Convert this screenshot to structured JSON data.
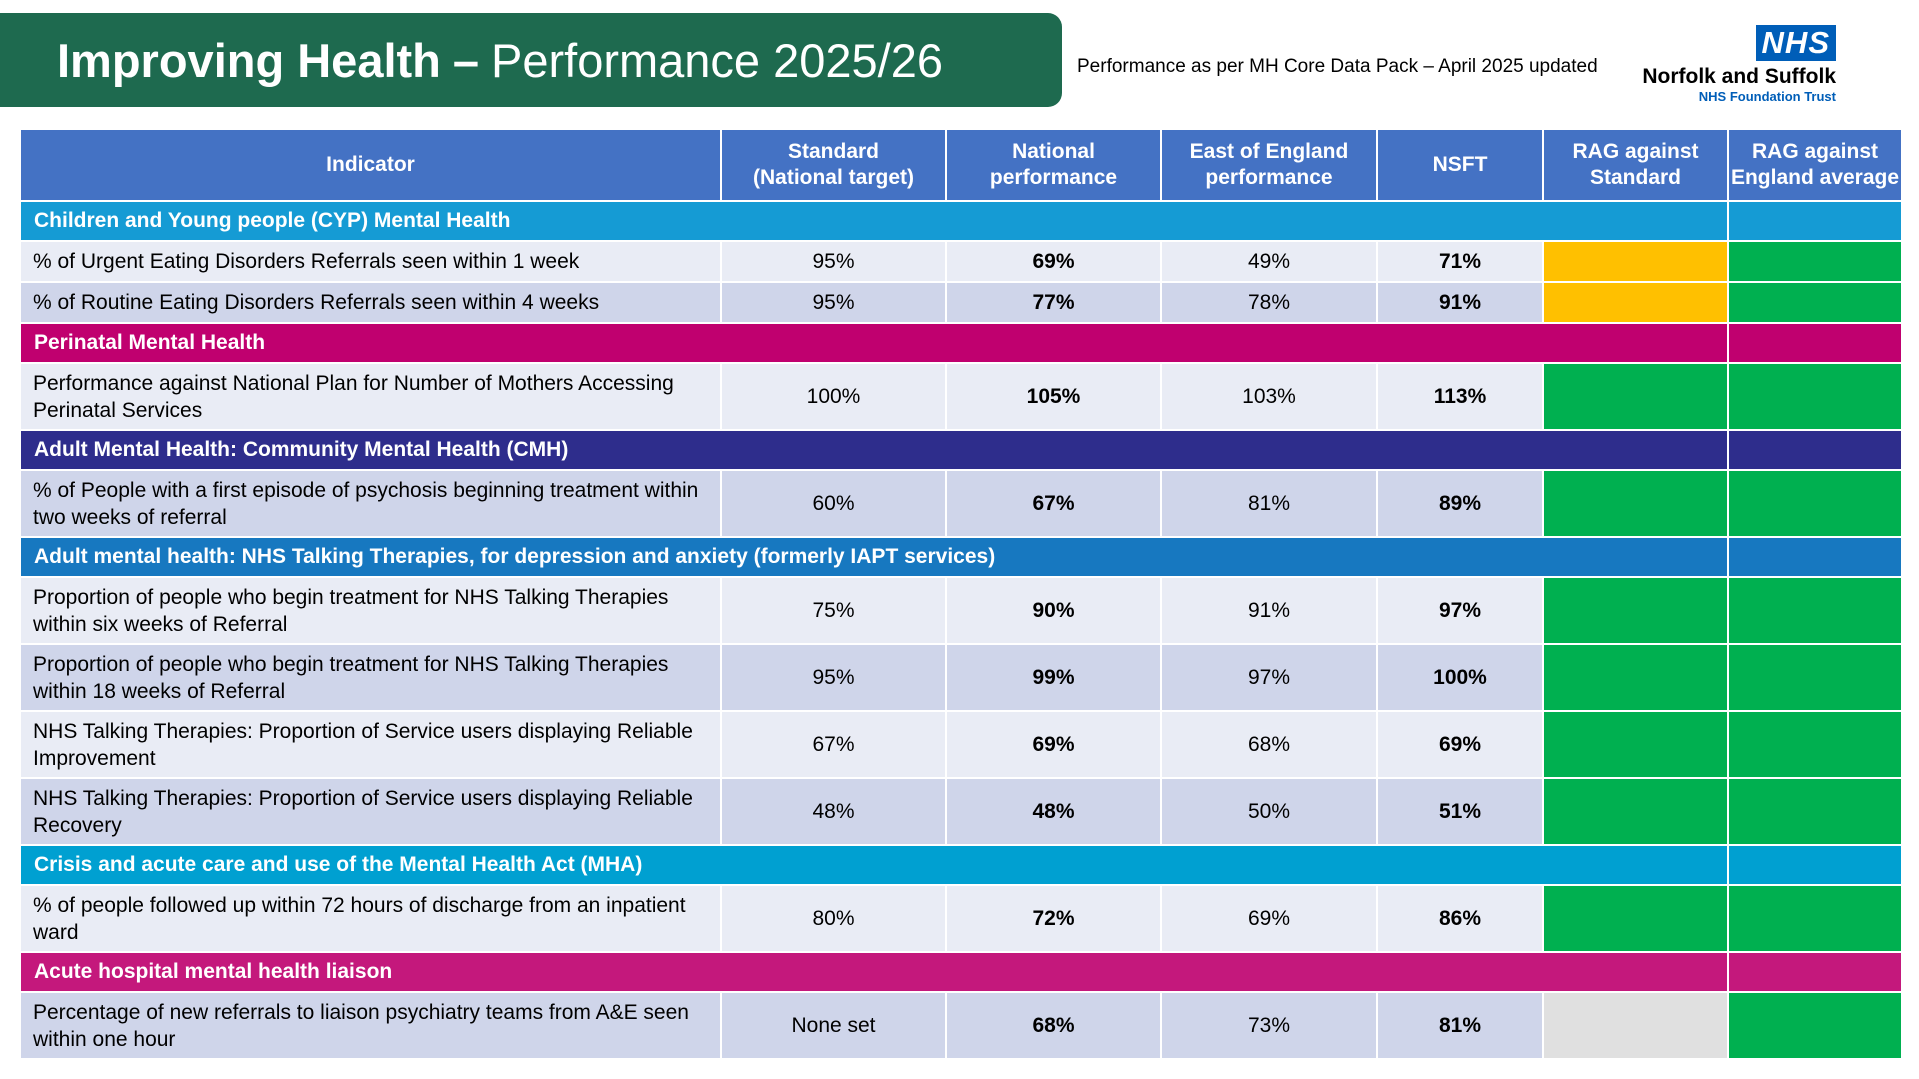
{
  "header": {
    "title_bold": "Improving Health",
    "title_sep": "–",
    "title_rest": "Performance 2025/26",
    "subtitle": "Performance as per MH Core Data Pack – April 2025 updated"
  },
  "logo": {
    "nhs": "NHS",
    "org": "Norfolk and Suffolk",
    "trust": "NHS Foundation Trust"
  },
  "colors": {
    "header_blue": "#4472c4",
    "amber": "#ffc000",
    "green": "#00b050",
    "grey": "#e0e0e0",
    "cyp": "#159bd4",
    "perinatal": "#c0006f",
    "cmh": "#2e2d8c",
    "talking": "#1778c0",
    "crisis": "#00a0d1",
    "liaison": "#c4187c"
  },
  "table": {
    "columns": [
      "Indicator",
      "Standard (National target)",
      "National performance",
      "East of England performance",
      "NSFT",
      "RAG against Standard",
      "RAG against England average"
    ],
    "col_labels": {
      "indicator": "Indicator",
      "standard": [
        "Standard",
        "(National target)"
      ],
      "national": [
        "National",
        "performance"
      ],
      "eoe": [
        "East of England",
        "performance"
      ],
      "nsft": "NSFT",
      "rag_std": [
        "RAG against",
        "Standard"
      ],
      "rag_eng": [
        "RAG against",
        "England average"
      ]
    },
    "sections": [
      {
        "title": "Children and Young people (CYP) Mental Health",
        "color": "#159bd4",
        "rows": [
          {
            "indicator": "% of Urgent Eating Disorders Referrals seen within 1 week",
            "standard": "95%",
            "national": "69%",
            "eoe": "49%",
            "nsft": "71%",
            "rag_standard": "amber",
            "rag_england": "green"
          },
          {
            "indicator": "% of Routine Eating Disorders Referrals seen within 4 weeks",
            "standard": "95%",
            "national": "77%",
            "eoe": "78%",
            "nsft": "91%",
            "rag_standard": "amber",
            "rag_england": "green"
          }
        ]
      },
      {
        "title": "Perinatal Mental Health",
        "color": "#c0006f",
        "rows": [
          {
            "indicator": "Performance against National Plan for Number of Mothers Accessing Perinatal Services",
            "standard": "100%",
            "national": "105%",
            "eoe": "103%",
            "nsft": "113%",
            "rag_standard": "green",
            "rag_england": "green"
          }
        ]
      },
      {
        "title": "Adult Mental Health: Community Mental Health (CMH)",
        "color": "#2e2d8c",
        "rows": [
          {
            "indicator": "% of People with a first episode of psychosis beginning treatment within two weeks of referral",
            "standard": "60%",
            "national": "67%",
            "eoe": "81%",
            "nsft": "89%",
            "rag_standard": "green",
            "rag_england": "green"
          }
        ]
      },
      {
        "title": "Adult mental health: NHS Talking Therapies, for depression and anxiety (formerly IAPT services)",
        "color": "#1778c0",
        "rows": [
          {
            "indicator": "Proportion of people who begin treatment for NHS Talking Therapies within six weeks of Referral",
            "standard": "75%",
            "national": "90%",
            "eoe": "91%",
            "nsft": "97%",
            "rag_standard": "green",
            "rag_england": "green"
          },
          {
            "indicator": "Proportion of people who begin treatment for NHS Talking Therapies within 18 weeks of Referral",
            "standard": "95%",
            "national": "99%",
            "eoe": "97%",
            "nsft": "100%",
            "rag_standard": "green",
            "rag_england": "green"
          },
          {
            "indicator": "NHS Talking Therapies: Proportion of Service users displaying Reliable Improvement",
            "standard": "67%",
            "national": "69%",
            "eoe": "68%",
            "nsft": "69%",
            "rag_standard": "green",
            "rag_england": "green"
          },
          {
            "indicator": "NHS Talking Therapies: Proportion of Service users displaying Reliable Recovery",
            "standard": "48%",
            "national": "48%",
            "eoe": "50%",
            "nsft": "51%",
            "rag_standard": "green",
            "rag_england": "green"
          }
        ]
      },
      {
        "title": "Crisis and acute care and use of the Mental Health Act (MHA)",
        "color": "#00a0d1",
        "rows": [
          {
            "indicator": "% of people followed up within 72 hours of discharge from an inpatient ward",
            "standard": "80%",
            "national": "72%",
            "eoe": "69%",
            "nsft": "86%",
            "rag_standard": "green",
            "rag_england": "green"
          }
        ]
      },
      {
        "title": "Acute hospital mental health liaison",
        "color": "#c4187c",
        "rows": [
          {
            "indicator": "Percentage of new referrals to liaison psychiatry teams from A&E seen within one hour",
            "standard": "None set",
            "national": "68%",
            "eoe": "73%",
            "nsft": "81%",
            "rag_standard": "none",
            "rag_england": "green"
          }
        ]
      }
    ]
  }
}
